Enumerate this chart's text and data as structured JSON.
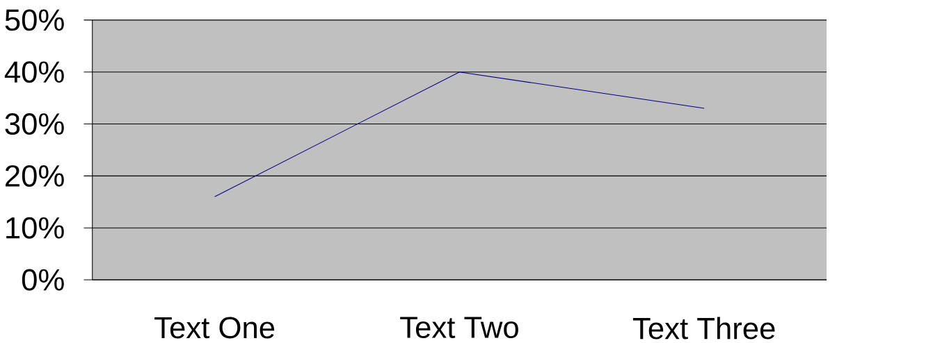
{
  "chart_data": {
    "type": "line",
    "categories": [
      "Text One",
      "Text Two",
      "Text Three"
    ],
    "series": [
      {
        "color": "#000080",
        "values": [
          16,
          40,
          33
        ]
      }
    ],
    "ylim": [
      0,
      50
    ],
    "yticks": [
      {
        "value": 0,
        "label": "0%"
      },
      {
        "value": 10,
        "label": "10%"
      },
      {
        "value": 20,
        "label": "20%"
      },
      {
        "value": 30,
        "label": "30%"
      },
      {
        "value": 40,
        "label": "40%"
      },
      {
        "value": 50,
        "label": "50%"
      }
    ],
    "grid": "y",
    "marker": "none",
    "line_style": "solid"
  }
}
